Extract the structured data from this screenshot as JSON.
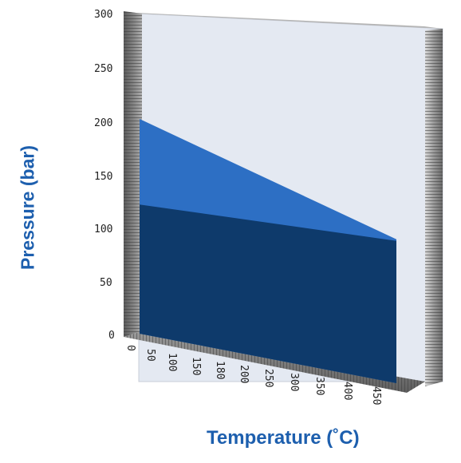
{
  "chart_data": {
    "type": "area",
    "title": "",
    "xlabel": "Temperature (˚C)",
    "ylabel": "Pressure (bar)",
    "x_ticks": [
      "0",
      "50",
      "100",
      "150",
      "180",
      "200",
      "250",
      "300",
      "350",
      "400",
      "450"
    ],
    "y_ticks": [
      "0",
      "50",
      "100",
      "150",
      "200",
      "250",
      "300"
    ],
    "ylim": [
      0,
      300
    ],
    "grid": false,
    "legend": "none",
    "series": [
      {
        "color": "#2d6fc4",
        "points": [
          {
            "x": "50",
            "y": 200
          },
          {
            "x": "450",
            "y": 86
          }
        ]
      },
      {
        "color": "#0e3a6b",
        "points": [
          {
            "x": "50",
            "y": 120
          },
          {
            "x": "450",
            "y": 86
          }
        ]
      }
    ],
    "colors": {
      "back_wall": "#e4e9f2",
      "axis_text": "#222222",
      "title_text": "#1d5fae"
    }
  }
}
